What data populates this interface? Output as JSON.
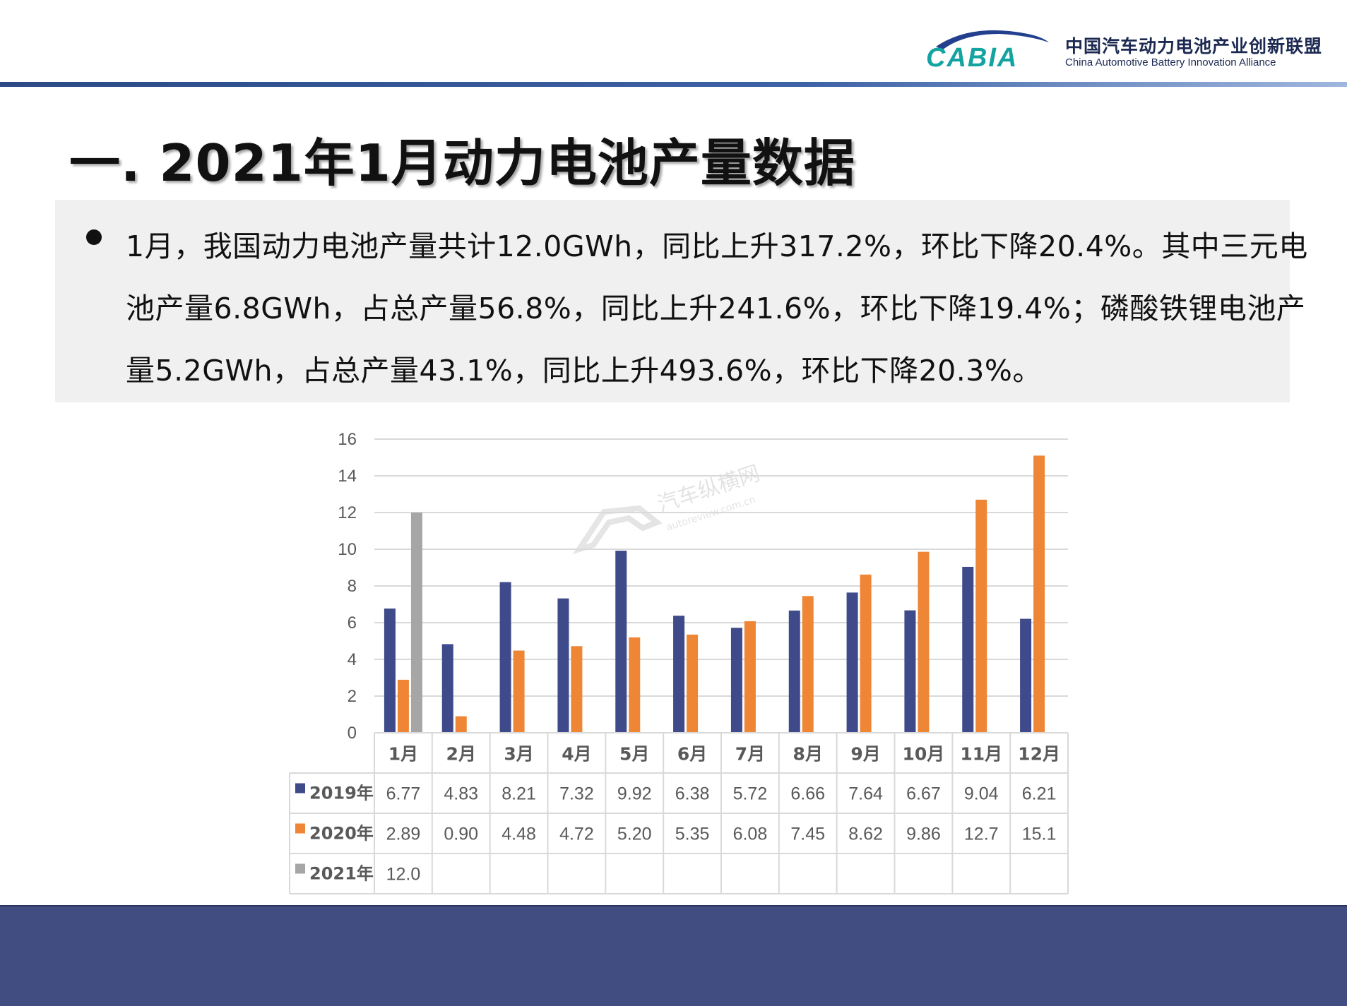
{
  "header": {
    "logo_text": "CABIA",
    "org_cn": "中国汽车动力电池产业创新联盟",
    "org_en": "China Automotive Battery Innovation Alliance"
  },
  "title": "一.  2021年1月动力电池产量数据",
  "paragraph": "1月，我国动力电池产量共计12.0GWh，同比上升317.2%，环比下降20.4%。其中三元电池产量6.8GWh，占总产量56.8%，同比上升241.6%，环比下降19.4%；磷酸铁锂电池产量5.2GWh，占总产量43.1%，同比上升493.6%，环比下降20.3%。",
  "watermark": {
    "cn": "汽车纵横网",
    "en": "autoreview.com.cn"
  },
  "chart_data": {
    "type": "bar",
    "categories": [
      "1月",
      "2月",
      "3月",
      "4月",
      "5月",
      "6月",
      "7月",
      "8月",
      "9月",
      "10月",
      "11月",
      "12月"
    ],
    "series": [
      {
        "name": "2019年",
        "color": "#3e4a8a",
        "values": [
          6.77,
          4.83,
          8.21,
          7.32,
          9.92,
          6.38,
          5.72,
          6.66,
          7.64,
          6.67,
          9.04,
          6.21
        ],
        "labels": [
          "6.77",
          "4.83",
          "8.21",
          "7.32",
          "9.92",
          "6.38",
          "5.72",
          "6.66",
          "7.64",
          "6.67",
          "9.04",
          "6.21"
        ]
      },
      {
        "name": "2020年",
        "color": "#ee8636",
        "values": [
          2.89,
          0.9,
          4.48,
          4.72,
          5.2,
          5.35,
          6.08,
          7.45,
          8.62,
          9.86,
          12.7,
          15.1
        ],
        "labels": [
          "2.89",
          "0.90",
          "4.48",
          "4.72",
          "5.20",
          "5.35",
          "6.08",
          "7.45",
          "8.62",
          "9.86",
          "12.7",
          "15.1"
        ]
      },
      {
        "name": "2021年",
        "color": "#a6a6a6",
        "values": [
          12.0,
          null,
          null,
          null,
          null,
          null,
          null,
          null,
          null,
          null,
          null,
          null
        ],
        "labels": [
          "12.0",
          "",
          "",
          "",
          "",
          "",
          "",
          "",
          "",
          "",
          "",
          ""
        ]
      }
    ],
    "ylim": [
      0,
      16
    ],
    "yticks": [
      0,
      2,
      4,
      6,
      8,
      10,
      12,
      14,
      16
    ],
    "grid": true,
    "legend": "data-table"
  }
}
